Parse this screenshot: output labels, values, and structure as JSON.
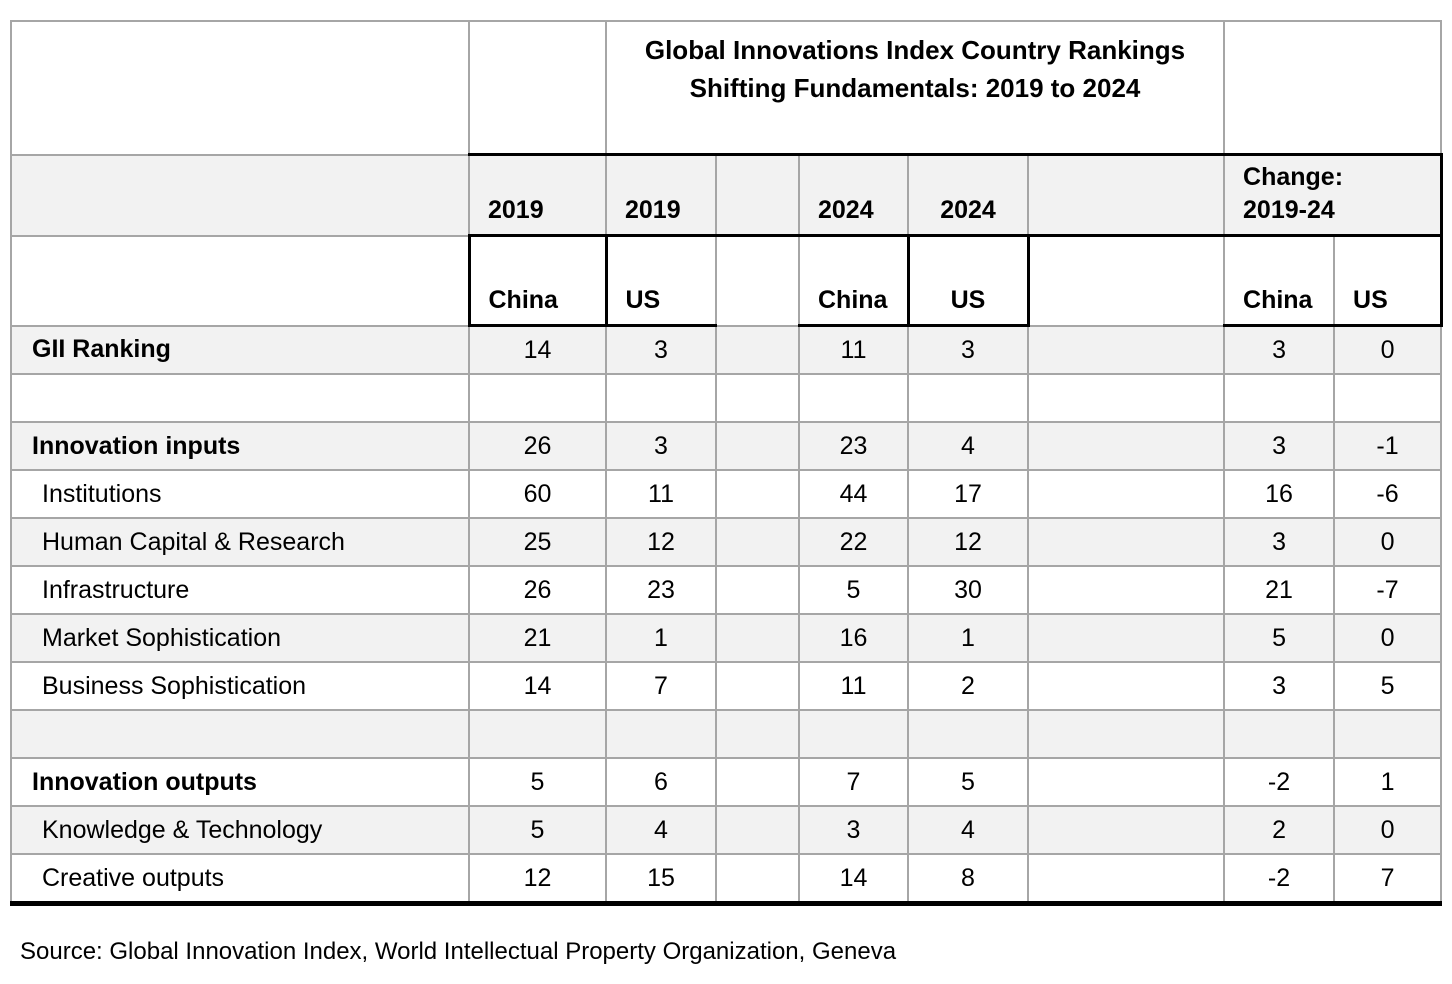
{
  "table": {
    "title_line1": "Global Innovations Index Country Rankings",
    "title_line2": "Shifting Fundamentals: 2019 to 2024",
    "year_headers": {
      "y2019_china": "2019",
      "y2019_us": "2019",
      "y2024_china": "2024",
      "y2024_us": "2024"
    },
    "change_header": {
      "line1": "Change:",
      "line2": "2019-24"
    },
    "country_headers": {
      "c2019_china": "China",
      "c2019_us": "US",
      "c2024_china": "China",
      "c2024_us": "US",
      "chg_china": "China",
      "chg_us": "US"
    },
    "rows": [
      {
        "label": "GII Ranking",
        "style": "section",
        "shaded": true,
        "values": [
          "14",
          "3",
          "11",
          "3",
          "3",
          "0"
        ]
      },
      {
        "label": "",
        "style": "blank",
        "shaded": false,
        "values": [
          "",
          "",
          "",
          "",
          "",
          ""
        ]
      },
      {
        "label": "Innovation inputs",
        "style": "section",
        "shaded": true,
        "values": [
          "26",
          "3",
          "23",
          "4",
          "3",
          "-1"
        ]
      },
      {
        "label": "Institutions",
        "style": "sub",
        "shaded": false,
        "values": [
          "60",
          "11",
          "44",
          "17",
          "16",
          "-6"
        ]
      },
      {
        "label": "Human Capital & Research",
        "style": "sub",
        "shaded": true,
        "values": [
          "25",
          "12",
          "22",
          "12",
          "3",
          "0"
        ]
      },
      {
        "label": "Infrastructure",
        "style": "sub",
        "shaded": false,
        "values": [
          "26",
          "23",
          "5",
          "30",
          "21",
          "-7"
        ]
      },
      {
        "label": "Market Sophistication",
        "style": "sub",
        "shaded": true,
        "values": [
          "21",
          "1",
          "16",
          "1",
          "5",
          "0"
        ]
      },
      {
        "label": "Business Sophistication",
        "style": "sub",
        "shaded": false,
        "values": [
          "14",
          "7",
          "11",
          "2",
          "3",
          "5"
        ]
      },
      {
        "label": "",
        "style": "blank",
        "shaded": true,
        "values": [
          "",
          "",
          "",
          "",
          "",
          ""
        ]
      },
      {
        "label": "Innovation outputs",
        "style": "section",
        "shaded": false,
        "values": [
          "5",
          "6",
          "7",
          "5",
          "-2",
          "1"
        ]
      },
      {
        "label": "Knowledge & Technology",
        "style": "sub",
        "shaded": true,
        "values": [
          "5",
          "4",
          "3",
          "4",
          "2",
          "0"
        ]
      },
      {
        "label": "Creative outputs",
        "style": "sub",
        "shaded": false,
        "values": [
          "12",
          "15",
          "14",
          "8",
          "-2",
          "7"
        ]
      }
    ]
  },
  "source_note": "Source: Global Innovation Index, World Intellectual Property Organization, Geneva",
  "colors": {
    "stripe": "#f2f2f2",
    "gridline": "#a6a6a6",
    "accent_border": "#000000",
    "text": "#000000"
  },
  "chart_data": {
    "type": "table",
    "title": "Global Innovations Index Country Rankings — Shifting Fundamentals: 2019 to 2024",
    "columns": [
      "2019 China",
      "2019 US",
      "2024 China",
      "2024 US",
      "Change 2019-24 China",
      "Change 2019-24 US"
    ],
    "rows": [
      {
        "label": "GII Ranking",
        "values": [
          14,
          3,
          11,
          3,
          3,
          0
        ]
      },
      {
        "label": "Innovation inputs",
        "values": [
          26,
          3,
          23,
          4,
          3,
          -1
        ]
      },
      {
        "label": "Institutions",
        "values": [
          60,
          11,
          44,
          17,
          16,
          -6
        ]
      },
      {
        "label": "Human Capital & Research",
        "values": [
          25,
          12,
          22,
          12,
          3,
          0
        ]
      },
      {
        "label": "Infrastructure",
        "values": [
          26,
          23,
          5,
          30,
          21,
          -7
        ]
      },
      {
        "label": "Market Sophistication",
        "values": [
          21,
          1,
          16,
          1,
          5,
          0
        ]
      },
      {
        "label": "Business Sophistication",
        "values": [
          14,
          7,
          11,
          2,
          3,
          5
        ]
      },
      {
        "label": "Innovation outputs",
        "values": [
          5,
          6,
          7,
          5,
          -2,
          1
        ]
      },
      {
        "label": "Knowledge & Technology",
        "values": [
          5,
          4,
          3,
          4,
          2,
          0
        ]
      },
      {
        "label": "Creative outputs",
        "values": [
          12,
          15,
          14,
          8,
          -2,
          7
        ]
      }
    ],
    "source": "Source: Global Innovation Index, World Intellectual Property Organization, Geneva"
  }
}
